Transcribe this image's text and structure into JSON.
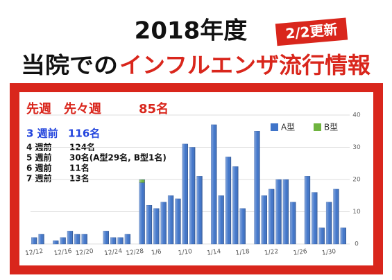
{
  "header": {
    "year": "2018年度",
    "updated": "2/2更新",
    "lead": "当院での",
    "headline": "インフルエンザ流行情報"
  },
  "summary": {
    "label": "先週　先々週",
    "count": "85名"
  },
  "weeks": [
    {
      "week": "3 週前",
      "count": "116名"
    },
    {
      "week": "4 週前",
      "count": "124名"
    },
    {
      "week": "5 週前",
      "count": "30名(A型29名, B型1名)"
    },
    {
      "week": "6 週前",
      "count": "11名"
    },
    {
      "week": "7 週前",
      "count": "13名"
    }
  ],
  "chart_data": {
    "type": "bar",
    "stacked": true,
    "categories": [
      "12/12",
      null,
      null,
      null,
      "12/16",
      null,
      null,
      "12/20",
      null,
      null,
      null,
      "12/24",
      null,
      null,
      "12/28",
      null,
      null,
      "1/6",
      null,
      null,
      null,
      "1/10",
      null,
      null,
      null,
      "1/14",
      null,
      null,
      null,
      "1/18",
      null,
      null,
      null,
      "1/22",
      null,
      null,
      null,
      "1/26",
      null,
      null,
      null,
      "1/30",
      null,
      null
    ],
    "series": [
      {
        "name": "A型",
        "color": "#3f74c9",
        "values": [
          2,
          3,
          null,
          1,
          2,
          4,
          3,
          3,
          null,
          null,
          4,
          2,
          2,
          3,
          null,
          19,
          12,
          11,
          13,
          15,
          14,
          31,
          30,
          21,
          null,
          37,
          15,
          27,
          24,
          11,
          null,
          35,
          15,
          17,
          20,
          20,
          13,
          null,
          21,
          16,
          5,
          13,
          17,
          5
        ]
      },
      {
        "name": "B型",
        "color": "#6fb43f",
        "values": [
          null,
          null,
          null,
          null,
          null,
          null,
          null,
          null,
          null,
          null,
          null,
          null,
          null,
          null,
          null,
          1,
          null,
          null,
          null,
          null,
          null,
          null,
          null,
          null,
          null,
          null,
          null,
          null,
          null,
          null,
          null,
          null,
          null,
          null,
          null,
          null,
          null,
          null,
          null,
          null,
          null,
          null,
          null,
          null
        ]
      }
    ],
    "ylim": [
      0,
      40
    ],
    "yticks": [
      0,
      10,
      20,
      30,
      40
    ],
    "grid": true,
    "legend": "top-right"
  }
}
